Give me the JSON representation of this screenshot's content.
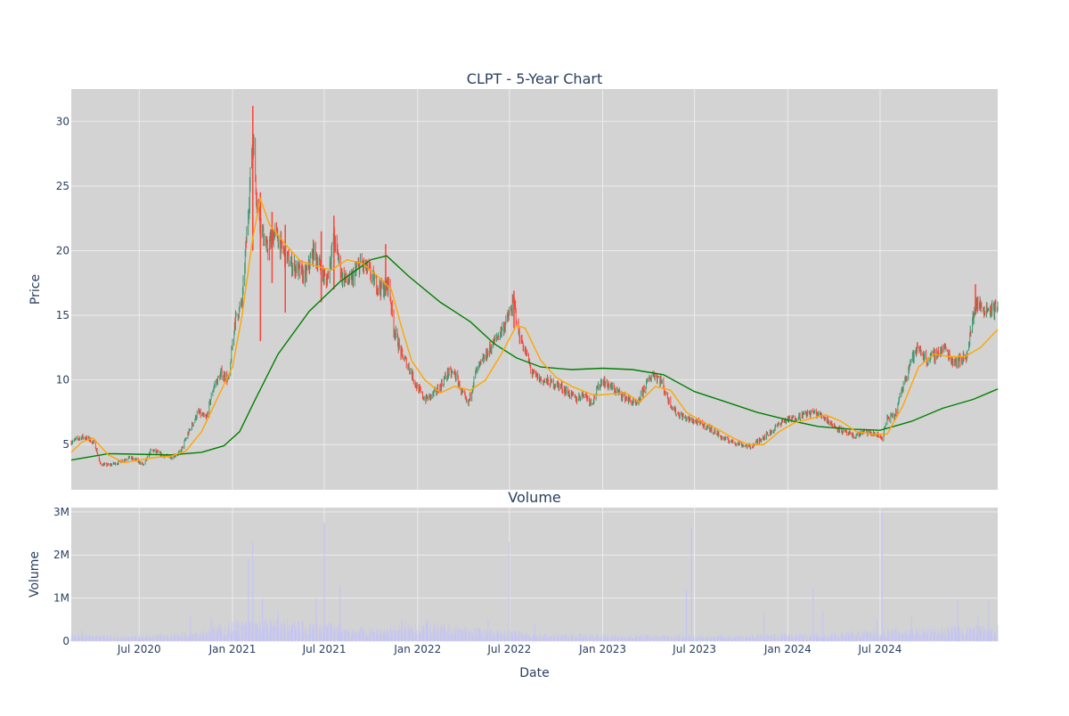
{
  "chart_data": [
    {
      "type": "candlestick",
      "title": "CLPT - 5-Year Chart",
      "ylabel": "Price",
      "ylim": [
        1.5,
        32.5
      ],
      "y_ticks": [
        5,
        10,
        15,
        20,
        25,
        30
      ],
      "x_range": [
        "2020-02-18",
        "2025-02-18"
      ],
      "x_ticks": [
        {
          "date": "2020-07-01",
          "label": "Jul 2020"
        },
        {
          "date": "2021-01-01",
          "label": "Jan 2021"
        },
        {
          "date": "2021-07-01",
          "label": "Jul 2021"
        },
        {
          "date": "2022-01-01",
          "label": "Jan 2022"
        },
        {
          "date": "2022-07-01",
          "label": "Jul 2022"
        },
        {
          "date": "2023-01-01",
          "label": "Jan 2023"
        },
        {
          "date": "2023-07-01",
          "label": "Jul 2023"
        },
        {
          "date": "2024-01-01",
          "label": "Jan 2024"
        },
        {
          "date": "2024-07-01",
          "label": "Jul 2024"
        }
      ],
      "grid": true,
      "colors": {
        "up": "#3d9970",
        "down": "#ff4136",
        "ma_short": "#ffa500",
        "ma_long": "#008000",
        "plot_bg": "#d3d3d3"
      },
      "close_series": [
        [
          "2020-02-18",
          5.2
        ],
        [
          "2020-03-10",
          5.6
        ],
        [
          "2020-03-25",
          5.4
        ],
        [
          "2020-04-05",
          5.0
        ],
        [
          "2020-04-15",
          3.5
        ],
        [
          "2020-05-01",
          3.4
        ],
        [
          "2020-05-20",
          3.6
        ],
        [
          "2020-06-10",
          4.0
        ],
        [
          "2020-06-25",
          3.8
        ],
        [
          "2020-07-10",
          3.4
        ],
        [
          "2020-07-25",
          4.6
        ],
        [
          "2020-08-15",
          4.2
        ],
        [
          "2020-09-01",
          4.0
        ],
        [
          "2020-09-20",
          4.4
        ],
        [
          "2020-10-05",
          5.8
        ],
        [
          "2020-10-25",
          7.5
        ],
        [
          "2020-11-10",
          7.0
        ],
        [
          "2020-11-25",
          9.5
        ],
        [
          "2020-12-10",
          10.5
        ],
        [
          "2020-12-25",
          10.0
        ],
        [
          "2021-01-05",
          14.5
        ],
        [
          "2021-01-20",
          16.0
        ],
        [
          "2021-02-01",
          23.0
        ],
        [
          "2021-02-10",
          29.0
        ],
        [
          "2021-02-18",
          24.0
        ],
        [
          "2021-02-28",
          21.5
        ],
        [
          "2021-03-10",
          20.0
        ],
        [
          "2021-03-25",
          21.5
        ],
        [
          "2021-04-10",
          20.0
        ],
        [
          "2021-04-25",
          19.0
        ],
        [
          "2021-05-10",
          18.5
        ],
        [
          "2021-05-25",
          18.0
        ],
        [
          "2021-06-10",
          20.0
        ],
        [
          "2021-06-25",
          18.5
        ],
        [
          "2021-07-05",
          17.5
        ],
        [
          "2021-07-20",
          21.0
        ],
        [
          "2021-08-05",
          18.0
        ],
        [
          "2021-08-20",
          17.5
        ],
        [
          "2021-09-10",
          19.0
        ],
        [
          "2021-09-25",
          18.5
        ],
        [
          "2021-10-10",
          17.5
        ],
        [
          "2021-10-25",
          17.0
        ],
        [
          "2021-11-05",
          17.5
        ],
        [
          "2021-11-15",
          14.0
        ],
        [
          "2021-11-30",
          12.0
        ],
        [
          "2021-12-15",
          11.0
        ],
        [
          "2021-12-30",
          9.5
        ],
        [
          "2022-01-15",
          8.5
        ],
        [
          "2022-01-30",
          8.8
        ],
        [
          "2022-02-15",
          9.5
        ],
        [
          "2022-03-01",
          10.5
        ],
        [
          "2022-03-15",
          10.5
        ],
        [
          "2022-03-30",
          9.0
        ],
        [
          "2022-04-10",
          8.0
        ],
        [
          "2022-04-25",
          10.5
        ],
        [
          "2022-05-10",
          11.5
        ],
        [
          "2022-05-25",
          12.5
        ],
        [
          "2022-06-10",
          13.5
        ],
        [
          "2022-06-25",
          14.5
        ],
        [
          "2022-07-10",
          16.0
        ],
        [
          "2022-07-20",
          13.5
        ],
        [
          "2022-07-30",
          12.5
        ],
        [
          "2022-08-15",
          10.5
        ],
        [
          "2022-09-01",
          10.0
        ],
        [
          "2022-09-20",
          9.8
        ],
        [
          "2022-10-10",
          9.5
        ],
        [
          "2022-10-25",
          9.0
        ],
        [
          "2022-11-10",
          8.5
        ],
        [
          "2022-11-25",
          9.0
        ],
        [
          "2022-12-10",
          8.2
        ],
        [
          "2022-12-30",
          10.0
        ],
        [
          "2023-01-15",
          9.5
        ],
        [
          "2023-02-01",
          9.0
        ],
        [
          "2023-02-20",
          8.5
        ],
        [
          "2023-03-10",
          8.0
        ],
        [
          "2023-03-25",
          9.5
        ],
        [
          "2023-04-10",
          10.5
        ],
        [
          "2023-04-25",
          10.0
        ],
        [
          "2023-05-10",
          8.5
        ],
        [
          "2023-05-25",
          7.5
        ],
        [
          "2023-06-15",
          7.0
        ],
        [
          "2023-07-01",
          6.8
        ],
        [
          "2023-07-20",
          6.5
        ],
        [
          "2023-08-10",
          6.0
        ],
        [
          "2023-08-25",
          5.5
        ],
        [
          "2023-09-15",
          5.2
        ],
        [
          "2023-10-01",
          5.0
        ],
        [
          "2023-10-20",
          4.8
        ],
        [
          "2023-11-10",
          5.5
        ],
        [
          "2023-11-30",
          6.0
        ],
        [
          "2023-12-20",
          6.8
        ],
        [
          "2024-01-10",
          7.0
        ],
        [
          "2024-01-30",
          7.3
        ],
        [
          "2024-02-20",
          7.5
        ],
        [
          "2024-03-10",
          7.2
        ],
        [
          "2024-03-30",
          6.5
        ],
        [
          "2024-04-20",
          6.0
        ],
        [
          "2024-05-10",
          5.6
        ],
        [
          "2024-05-30",
          6.0
        ],
        [
          "2024-06-20",
          5.8
        ],
        [
          "2024-07-05",
          5.5
        ],
        [
          "2024-07-15",
          7.0
        ],
        [
          "2024-07-30",
          7.2
        ],
        [
          "2024-08-15",
          9.5
        ],
        [
          "2024-08-30",
          11.5
        ],
        [
          "2024-09-15",
          12.5
        ],
        [
          "2024-10-01",
          11.5
        ],
        [
          "2024-10-20",
          12.0
        ],
        [
          "2024-11-05",
          12.5
        ],
        [
          "2024-11-20",
          11.5
        ],
        [
          "2024-12-05",
          11.5
        ],
        [
          "2024-12-20",
          12.0
        ],
        [
          "2025-01-05",
          16.0
        ],
        [
          "2025-01-20",
          15.5
        ],
        [
          "2025-02-05",
          15.5
        ],
        [
          "2025-02-18",
          15.5
        ]
      ],
      "spikes": [
        {
          "date": "2021-02-10",
          "high": 31.2,
          "low": 20.0
        },
        {
          "date": "2021-02-25",
          "high": 24.5,
          "low": 13.0
        },
        {
          "date": "2021-03-20",
          "high": 23.0,
          "low": 17.5
        },
        {
          "date": "2021-04-15",
          "high": 22.0,
          "low": 15.2
        },
        {
          "date": "2021-06-25",
          "high": 21.5,
          "low": 16.0
        },
        {
          "date": "2021-07-20",
          "high": 22.7,
          "low": 17.0
        },
        {
          "date": "2021-10-30",
          "high": 20.5,
          "low": 16.5
        },
        {
          "date": "2022-07-10",
          "high": 16.9,
          "low": 14.0
        },
        {
          "date": "2025-01-05",
          "high": 17.4,
          "low": 15.0
        }
      ],
      "ma_short": [
        [
          "2020-02-18",
          4.4
        ],
        [
          "2020-03-10",
          5.2
        ],
        [
          "2020-04-01",
          5.5
        ],
        [
          "2020-05-01",
          4.2
        ],
        [
          "2020-06-01",
          3.6
        ],
        [
          "2020-07-01",
          3.8
        ],
        [
          "2020-08-01",
          4.0
        ],
        [
          "2020-09-01",
          4.1
        ],
        [
          "2020-10-01",
          4.5
        ],
        [
          "2020-11-01",
          6.0
        ],
        [
          "2020-12-01",
          8.5
        ],
        [
          "2021-01-01",
          11.0
        ],
        [
          "2021-01-20",
          15.0
        ],
        [
          "2021-02-10",
          21.0
        ],
        [
          "2021-02-25",
          24.0
        ],
        [
          "2021-03-15",
          22.0
        ],
        [
          "2021-04-15",
          20.5
        ],
        [
          "2021-05-15",
          19.2
        ],
        [
          "2021-06-15",
          18.8
        ],
        [
          "2021-07-15",
          18.5
        ],
        [
          "2021-08-15",
          19.3
        ],
        [
          "2021-09-15",
          19.0
        ],
        [
          "2021-10-15",
          18.0
        ],
        [
          "2021-11-10",
          17.0
        ],
        [
          "2021-12-01",
          14.0
        ],
        [
          "2021-12-20",
          11.5
        ],
        [
          "2022-01-15",
          10.0
        ],
        [
          "2022-02-15",
          9.0
        ],
        [
          "2022-03-15",
          9.5
        ],
        [
          "2022-04-15",
          9.2
        ],
        [
          "2022-05-15",
          10.0
        ],
        [
          "2022-06-15",
          12.0
        ],
        [
          "2022-07-15",
          14.2
        ],
        [
          "2022-08-01",
          14.0
        ],
        [
          "2022-09-01",
          11.5
        ],
        [
          "2022-10-01",
          10.2
        ],
        [
          "2022-11-01",
          9.5
        ],
        [
          "2022-12-15",
          8.8
        ],
        [
          "2023-01-15",
          8.9
        ],
        [
          "2023-02-15",
          9.0
        ],
        [
          "2023-03-15",
          8.3
        ],
        [
          "2023-04-15",
          9.5
        ],
        [
          "2023-05-15",
          9.2
        ],
        [
          "2023-06-15",
          7.5
        ],
        [
          "2023-07-15",
          6.8
        ],
        [
          "2023-08-15",
          6.2
        ],
        [
          "2023-09-15",
          5.5
        ],
        [
          "2023-10-15",
          5.0
        ],
        [
          "2023-11-15",
          5.0
        ],
        [
          "2023-12-15",
          6.0
        ],
        [
          "2024-01-15",
          6.7
        ],
        [
          "2024-02-15",
          7.0
        ],
        [
          "2024-03-15",
          7.3
        ],
        [
          "2024-04-15",
          6.8
        ],
        [
          "2024-05-15",
          6.0
        ],
        [
          "2024-06-15",
          5.8
        ],
        [
          "2024-07-15",
          5.8
        ],
        [
          "2024-08-15",
          8.0
        ],
        [
          "2024-09-15",
          11.0
        ],
        [
          "2024-10-15",
          12.0
        ],
        [
          "2024-11-15",
          11.8
        ],
        [
          "2024-12-15",
          11.8
        ],
        [
          "2025-01-15",
          12.5
        ],
        [
          "2025-02-18",
          13.9
        ]
      ],
      "ma_long": [
        [
          "2020-02-18",
          3.8
        ],
        [
          "2020-05-01",
          4.3
        ],
        [
          "2020-09-01",
          4.2
        ],
        [
          "2020-11-01",
          4.4
        ],
        [
          "2020-12-15",
          4.9
        ],
        [
          "2021-01-15",
          6.0
        ],
        [
          "2021-02-15",
          8.5
        ],
        [
          "2021-04-01",
          12.0
        ],
        [
          "2021-06-01",
          15.3
        ],
        [
          "2021-08-01",
          17.6
        ],
        [
          "2021-10-01",
          19.3
        ],
        [
          "2021-11-01",
          19.6
        ],
        [
          "2021-12-15",
          18.0
        ],
        [
          "2022-02-15",
          16.0
        ],
        [
          "2022-04-15",
          14.5
        ],
        [
          "2022-06-01",
          12.8
        ],
        [
          "2022-07-15",
          11.7
        ],
        [
          "2022-09-01",
          11.0
        ],
        [
          "2022-11-01",
          10.8
        ],
        [
          "2023-01-01",
          10.9
        ],
        [
          "2023-03-01",
          10.8
        ],
        [
          "2023-05-01",
          10.4
        ],
        [
          "2023-07-01",
          9.1
        ],
        [
          "2023-09-01",
          8.3
        ],
        [
          "2023-11-01",
          7.5
        ],
        [
          "2024-01-01",
          6.9
        ],
        [
          "2024-03-01",
          6.4
        ],
        [
          "2024-05-01",
          6.2
        ],
        [
          "2024-07-01",
          6.1
        ],
        [
          "2024-09-01",
          6.8
        ],
        [
          "2024-11-01",
          7.8
        ],
        [
          "2025-01-01",
          8.5
        ],
        [
          "2025-02-18",
          9.3
        ]
      ]
    },
    {
      "type": "bar",
      "title": "Volume",
      "xlabel": "Date",
      "ylabel": "Volume",
      "ylim": [
        0,
        3.1
      ],
      "y_ticks": [
        {
          "value": 0,
          "label": "0"
        },
        {
          "value": 1,
          "label": "1M"
        },
        {
          "value": 2,
          "label": "2M"
        },
        {
          "value": 3,
          "label": "3M"
        }
      ],
      "unit": "millions of shares",
      "colors": {
        "bar": "#c5c5f2"
      },
      "spikes": [
        [
          "2020-03-10",
          0.25
        ],
        [
          "2020-10-10",
          0.6
        ],
        [
          "2020-11-20",
          0.55
        ],
        [
          "2021-01-10",
          0.5
        ],
        [
          "2021-02-01",
          1.9
        ],
        [
          "2021-02-10",
          2.3
        ],
        [
          "2021-03-01",
          1.0
        ],
        [
          "2021-04-01",
          0.7
        ],
        [
          "2021-06-15",
          1.0
        ],
        [
          "2021-07-01",
          2.75
        ],
        [
          "2021-08-01",
          1.3
        ],
        [
          "2021-12-01",
          0.5
        ],
        [
          "2022-01-20",
          0.5
        ],
        [
          "2022-05-20",
          0.5
        ],
        [
          "2022-06-30",
          2.3
        ],
        [
          "2022-08-20",
          0.4
        ],
        [
          "2023-06-15",
          1.2
        ],
        [
          "2023-06-25",
          2.65
        ],
        [
          "2023-11-15",
          0.65
        ],
        [
          "2024-02-20",
          1.25
        ],
        [
          "2024-03-10",
          0.7
        ],
        [
          "2024-06-25",
          0.5
        ],
        [
          "2024-07-05",
          3.0
        ],
        [
          "2024-09-01",
          0.6
        ],
        [
          "2024-12-01",
          0.95
        ],
        [
          "2025-01-10",
          0.6
        ],
        [
          "2025-02-01",
          0.95
        ]
      ],
      "baseline": [
        [
          "2020-02-18",
          0.12
        ],
        [
          "2020-06-01",
          0.08
        ],
        [
          "2020-10-01",
          0.15
        ],
        [
          "2021-01-01",
          0.3
        ],
        [
          "2021-03-01",
          0.35
        ],
        [
          "2021-07-01",
          0.28
        ],
        [
          "2021-10-01",
          0.2
        ],
        [
          "2022-01-01",
          0.3
        ],
        [
          "2022-05-01",
          0.2
        ],
        [
          "2022-09-01",
          0.12
        ],
        [
          "2023-03-01",
          0.1
        ],
        [
          "2023-09-01",
          0.1
        ],
        [
          "2024-03-01",
          0.12
        ],
        [
          "2024-08-01",
          0.2
        ],
        [
          "2025-02-18",
          0.25
        ]
      ]
    }
  ]
}
